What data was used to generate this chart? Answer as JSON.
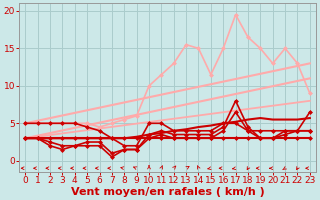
{
  "title": "",
  "xlabel": "Vent moyen/en rafales ( km/h )",
  "ylabel": "",
  "xlim": [
    -0.5,
    23.5
  ],
  "ylim": [
    -1.5,
    21
  ],
  "yticks": [
    0,
    5,
    10,
    15,
    20
  ],
  "xticks": [
    0,
    1,
    2,
    3,
    4,
    5,
    6,
    7,
    8,
    9,
    10,
    11,
    12,
    13,
    14,
    15,
    16,
    17,
    18,
    19,
    20,
    21,
    22,
    23
  ],
  "bg_color": "#cce8e8",
  "grid_color": "#aacccc",
  "lines": [
    {
      "x": [
        0,
        1,
        2,
        3,
        4,
        5,
        6,
        7,
        8,
        9,
        10,
        11,
        12,
        13,
        14,
        15,
        16,
        17,
        18,
        19,
        20,
        21,
        22,
        23
      ],
      "y": [
        3,
        3,
        3,
        3,
        3,
        3,
        3,
        3,
        3,
        3,
        3,
        3,
        3,
        3,
        3,
        3,
        3,
        3,
        3,
        3,
        3,
        3,
        3,
        3
      ],
      "color": "#cc0000",
      "lw": 1.5,
      "marker": "D",
      "ms": 2.0,
      "zorder": 5
    },
    {
      "x": [
        0,
        1,
        2,
        3,
        4,
        5,
        6,
        7,
        8,
        9,
        10,
        11,
        12,
        13,
        14,
        15,
        16,
        17,
        18,
        19,
        20,
        21,
        22,
        23
      ],
      "y": [
        3,
        3,
        3,
        3,
        3,
        3,
        3,
        3,
        3,
        3.2,
        3.5,
        3.7,
        4,
        4.2,
        4.5,
        4.7,
        5,
        5.2,
        5.5,
        5.7,
        5.5,
        5.5,
        5.5,
        5.7
      ],
      "color": "#cc0000",
      "lw": 1.5,
      "marker": null,
      "ms": 0,
      "zorder": 4
    },
    {
      "x": [
        0,
        1,
        2,
        3,
        4,
        5,
        6,
        7,
        8,
        9,
        10,
        11,
        12,
        13,
        14,
        15,
        16,
        17,
        18,
        19,
        20,
        21,
        22,
        23
      ],
      "y": [
        5,
        5,
        5,
        5,
        5,
        4.5,
        4,
        3,
        2,
        2,
        5,
        5,
        4,
        4,
        4,
        4,
        5,
        5,
        4,
        4,
        4,
        4,
        4,
        6.5
      ],
      "color": "#cc0000",
      "lw": 1.2,
      "marker": "D",
      "ms": 2.0,
      "zorder": 4
    },
    {
      "x": [
        0,
        1,
        2,
        3,
        4,
        5,
        6,
        7,
        8,
        9,
        10,
        11,
        12,
        13,
        14,
        15,
        16,
        17,
        18,
        19,
        20,
        21,
        22,
        23
      ],
      "y": [
        3,
        3,
        2.5,
        2,
        2,
        2.5,
        2.5,
        1,
        1.5,
        1.5,
        3.5,
        4,
        3.5,
        3.5,
        3.5,
        3.5,
        4.5,
        8,
        4.5,
        3,
        3,
        4,
        4,
        4
      ],
      "color": "#cc0000",
      "lw": 1.2,
      "marker": "D",
      "ms": 2.0,
      "zorder": 4
    },
    {
      "x": [
        0,
        1,
        2,
        3,
        4,
        5,
        6,
        7,
        8,
        9,
        10,
        11,
        12,
        13,
        14,
        15,
        16,
        17,
        18,
        19,
        20,
        21,
        22,
        23
      ],
      "y": [
        3,
        3,
        2,
        1.5,
        2,
        2,
        2,
        0.5,
        1.5,
        1.5,
        3,
        3.5,
        3,
        3,
        3,
        3,
        4,
        6.5,
        4,
        3,
        3,
        3.5,
        4,
        4
      ],
      "color": "#cc0000",
      "lw": 1.2,
      "marker": "D",
      "ms": 2.0,
      "zorder": 3
    },
    {
      "x": [
        0,
        23
      ],
      "y": [
        5,
        13
      ],
      "color": "#ffaaaa",
      "lw": 1.5,
      "marker": null,
      "ms": 0,
      "zorder": 2
    },
    {
      "x": [
        0,
        23
      ],
      "y": [
        3,
        11
      ],
      "color": "#ffaaaa",
      "lw": 1.5,
      "marker": null,
      "ms": 0,
      "zorder": 2
    },
    {
      "x": [
        0,
        23
      ],
      "y": [
        3,
        8
      ],
      "color": "#ffaaaa",
      "lw": 1.3,
      "marker": null,
      "ms": 0,
      "zorder": 2
    },
    {
      "x": [
        0,
        1,
        2,
        3,
        4,
        5,
        6,
        7,
        8,
        9,
        10,
        11,
        12,
        13,
        14,
        15,
        16,
        17,
        18,
        19,
        20,
        21,
        22,
        23
      ],
      "y": [
        5,
        5,
        5,
        5,
        5,
        5,
        4.5,
        5,
        5.5,
        6,
        10,
        11.5,
        13,
        15.5,
        15,
        11.5,
        15,
        19.5,
        16.5,
        15,
        13,
        15,
        13,
        9
      ],
      "color": "#ffaaaa",
      "lw": 1.2,
      "marker": "D",
      "ms": 2.0,
      "zorder": 3
    }
  ],
  "arrow_color": "#cc0000",
  "xlabel_fontsize": 8,
  "tick_fontsize": 6.5,
  "tick_color": "#cc0000",
  "axis_color": "#999999"
}
